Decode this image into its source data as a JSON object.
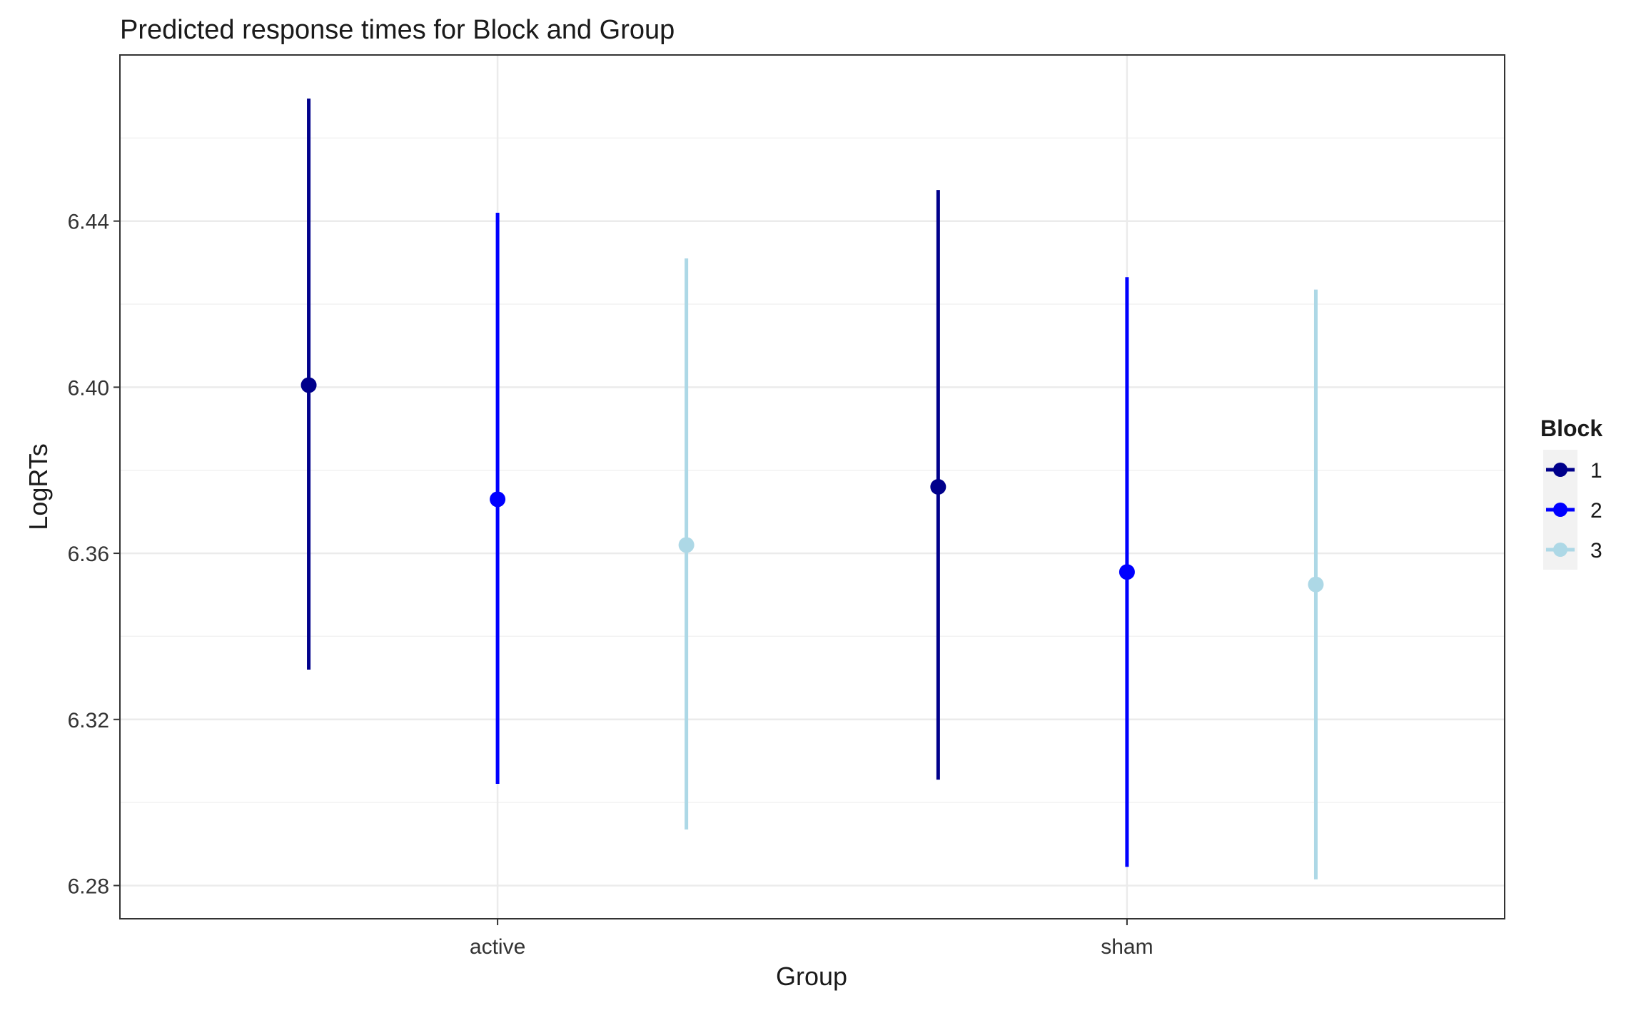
{
  "chart_data": {
    "type": "scatter",
    "subtype": "point-with-error-bars",
    "title": "Predicted response times for Block and Group",
    "xlabel": "Group",
    "ylabel": "LogRTs",
    "categories": [
      "active",
      "sham"
    ],
    "yticks": [
      "6.28",
      "6.32",
      "6.36",
      "6.40",
      "6.44"
    ],
    "ylim": [
      6.272,
      6.48
    ],
    "grid": true,
    "legend": {
      "title": "Block",
      "position": "right",
      "entries": [
        "1",
        "2",
        "3"
      ]
    },
    "series": [
      {
        "name": "1",
        "color": "#00008B",
        "values": [
          6.4005,
          6.376
        ],
        "lower": [
          6.332,
          6.3055
        ],
        "upper": [
          6.4695,
          6.4475
        ]
      },
      {
        "name": "2",
        "color": "#0000FF",
        "values": [
          6.373,
          6.3555
        ],
        "lower": [
          6.3045,
          6.2845
        ],
        "upper": [
          6.442,
          6.4265
        ]
      },
      {
        "name": "3",
        "color": "#ADD8E6",
        "values": [
          6.362,
          6.3525
        ],
        "lower": [
          6.2935,
          6.2815
        ],
        "upper": [
          6.431,
          6.4235
        ]
      }
    ]
  }
}
